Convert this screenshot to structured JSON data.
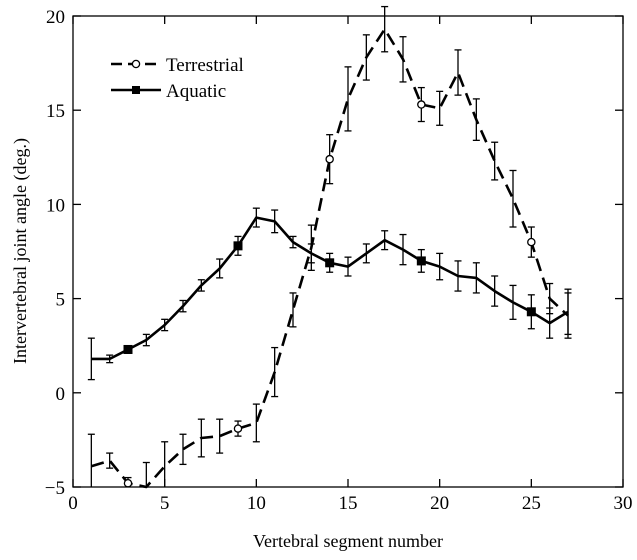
{
  "chart_data": {
    "type": "line",
    "title": "",
    "xlabel": "Vertebral segment number",
    "ylabel": "Intervertebral joint angle (deg.)",
    "xlim": [
      0,
      30
    ],
    "ylim": [
      -5,
      20
    ],
    "xticks": [
      0,
      5,
      10,
      15,
      20,
      25,
      30
    ],
    "yticks": [
      -5,
      0,
      5,
      10,
      15,
      20
    ],
    "grid": false,
    "legend_position": "top-left",
    "series": [
      {
        "name": "Terrestrial",
        "line_style": "dashed",
        "marker": "open-circle",
        "color": "#000000",
        "x": [
          1,
          2,
          3,
          4,
          5,
          6,
          7,
          8,
          9,
          10,
          11,
          12,
          13,
          14,
          15,
          16,
          17,
          18,
          19,
          20,
          21,
          22,
          23,
          24,
          25,
          26,
          27
        ],
        "y": [
          -3.9,
          -3.6,
          -4.8,
          -5.0,
          -3.9,
          -3.0,
          -2.4,
          -2.3,
          -1.9,
          -1.6,
          1.1,
          4.4,
          7.7,
          12.4,
          15.6,
          17.8,
          19.3,
          17.7,
          15.3,
          15.1,
          17.0,
          14.5,
          12.3,
          10.3,
          8.0,
          5.0,
          4.1
        ],
        "error": [
          1.7,
          0.4,
          0.3,
          1.3,
          1.3,
          0.8,
          1.0,
          0.9,
          0.4,
          1.0,
          1.3,
          0.9,
          1.2,
          1.3,
          1.7,
          1.2,
          1.2,
          1.2,
          0.9,
          0.9,
          1.2,
          1.1,
          1.0,
          1.5,
          0.8,
          0.8,
          1.2
        ],
        "marked_points": [
          3,
          9,
          14,
          19,
          25
        ]
      },
      {
        "name": "Aquatic",
        "line_style": "solid",
        "marker": "filled-square",
        "color": "#000000",
        "x": [
          1,
          2,
          3,
          4,
          5,
          6,
          7,
          8,
          9,
          10,
          11,
          12,
          13,
          14,
          15,
          16,
          17,
          18,
          19,
          20,
          21,
          22,
          23,
          24,
          25,
          26,
          27
        ],
        "y": [
          1.8,
          1.8,
          2.3,
          2.8,
          3.6,
          4.6,
          5.7,
          6.6,
          7.8,
          9.3,
          9.1,
          8.0,
          7.4,
          6.9,
          6.7,
          7.4,
          8.1,
          7.6,
          7.0,
          6.7,
          6.2,
          6.1,
          5.4,
          4.8,
          4.3,
          3.7,
          4.3
        ],
        "error": [
          1.1,
          0.2,
          0.2,
          0.3,
          0.3,
          0.3,
          0.3,
          0.5,
          0.5,
          0.5,
          0.6,
          0.3,
          0.5,
          0.5,
          0.5,
          0.5,
          0.5,
          0.8,
          0.6,
          0.7,
          0.8,
          0.8,
          0.8,
          0.9,
          0.9,
          0.8,
          1.2
        ],
        "marked_points": [
          3,
          9,
          14,
          19,
          25
        ]
      }
    ]
  }
}
